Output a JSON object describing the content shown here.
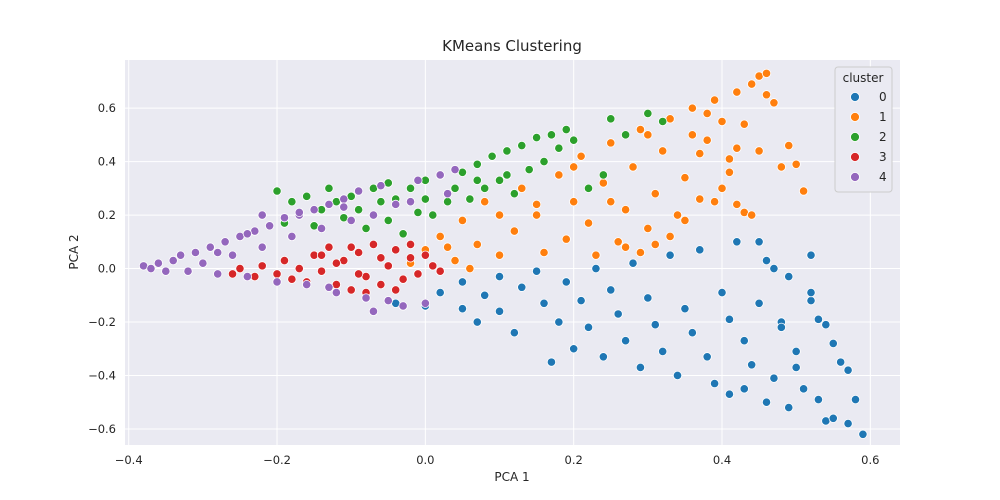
{
  "chart_data": {
    "type": "scatter",
    "title": "KMeans Clustering",
    "xlabel": "PCA 1",
    "ylabel": "PCA 2",
    "xlim": [
      -0.405,
      0.64
    ],
    "ylim": [
      -0.66,
      0.78
    ],
    "xticks": [
      -0.4,
      -0.2,
      0.0,
      0.2,
      0.4,
      0.6
    ],
    "xtick_labels": [
      "−0.4",
      "−0.2",
      "0.0",
      "0.2",
      "0.4",
      "0.6"
    ],
    "yticks": [
      -0.6,
      -0.4,
      -0.2,
      0.0,
      0.2,
      0.4,
      0.6
    ],
    "ytick_labels": [
      "−0.6",
      "−0.4",
      "−0.2",
      "0.0",
      "0.2",
      "0.4",
      "0.6"
    ],
    "grid": true,
    "legend": {
      "title": "cluster",
      "placement": "top-right"
    },
    "series": [
      {
        "name": "0",
        "color": "#1f77b4",
        "points": [
          [
            -0.04,
            -0.13
          ],
          [
            0.0,
            -0.14
          ],
          [
            0.02,
            -0.09
          ],
          [
            0.05,
            -0.15
          ],
          [
            0.05,
            -0.05
          ],
          [
            0.07,
            -0.2
          ],
          [
            0.08,
            -0.1
          ],
          [
            0.1,
            -0.03
          ],
          [
            0.1,
            -0.16
          ],
          [
            0.12,
            -0.24
          ],
          [
            0.13,
            -0.07
          ],
          [
            0.15,
            -0.01
          ],
          [
            0.16,
            -0.13
          ],
          [
            0.17,
            -0.35
          ],
          [
            0.18,
            -0.2
          ],
          [
            0.19,
            -0.05
          ],
          [
            0.2,
            -0.3
          ],
          [
            0.21,
            -0.12
          ],
          [
            0.22,
            -0.22
          ],
          [
            0.23,
            0.0
          ],
          [
            0.24,
            -0.33
          ],
          [
            0.25,
            -0.08
          ],
          [
            0.26,
            -0.17
          ],
          [
            0.27,
            -0.27
          ],
          [
            0.28,
            0.02
          ],
          [
            0.29,
            -0.37
          ],
          [
            0.3,
            -0.11
          ],
          [
            0.31,
            -0.21
          ],
          [
            0.32,
            -0.31
          ],
          [
            0.33,
            0.05
          ],
          [
            0.34,
            -0.4
          ],
          [
            0.35,
            -0.15
          ],
          [
            0.36,
            -0.24
          ],
          [
            0.37,
            0.07
          ],
          [
            0.38,
            -0.33
          ],
          [
            0.39,
            -0.43
          ],
          [
            0.4,
            -0.09
          ],
          [
            0.41,
            -0.19
          ],
          [
            0.42,
            0.1
          ],
          [
            0.43,
            -0.27
          ],
          [
            0.44,
            -0.36
          ],
          [
            0.45,
            -0.13
          ],
          [
            0.46,
            0.03
          ],
          [
            0.47,
            -0.41
          ],
          [
            0.48,
            -0.2
          ],
          [
            0.49,
            -0.03
          ],
          [
            0.5,
            -0.31
          ],
          [
            0.51,
            -0.45
          ],
          [
            0.52,
            -0.12
          ],
          [
            0.53,
            -0.49
          ],
          [
            0.54,
            -0.57
          ],
          [
            0.55,
            -0.28
          ],
          [
            0.56,
            -0.35
          ],
          [
            0.57,
            -0.38
          ],
          [
            0.58,
            -0.49
          ],
          [
            0.59,
            -0.62
          ],
          [
            0.57,
            -0.58
          ],
          [
            0.52,
            0.05
          ],
          [
            0.55,
            -0.56
          ],
          [
            0.45,
            0.1
          ],
          [
            0.48,
            -0.22
          ],
          [
            0.49,
            -0.52
          ],
          [
            0.46,
            -0.5
          ],
          [
            0.43,
            -0.45
          ],
          [
            0.5,
            -0.37
          ],
          [
            0.54,
            -0.21
          ],
          [
            0.53,
            -0.19
          ],
          [
            0.52,
            -0.09
          ],
          [
            0.47,
            0.0
          ],
          [
            0.41,
            -0.47
          ]
        ]
      },
      {
        "name": "1",
        "color": "#ff7f0e",
        "points": [
          [
            -0.02,
            0.02
          ],
          [
            0.0,
            0.07
          ],
          [
            0.02,
            0.12
          ],
          [
            0.04,
            0.03
          ],
          [
            0.05,
            0.18
          ],
          [
            0.07,
            0.09
          ],
          [
            0.08,
            0.25
          ],
          [
            0.1,
            0.05
          ],
          [
            0.12,
            0.14
          ],
          [
            0.13,
            0.3
          ],
          [
            0.15,
            0.2
          ],
          [
            0.16,
            0.06
          ],
          [
            0.18,
            0.35
          ],
          [
            0.19,
            0.11
          ],
          [
            0.2,
            0.25
          ],
          [
            0.21,
            0.42
          ],
          [
            0.22,
            0.17
          ],
          [
            0.23,
            0.05
          ],
          [
            0.24,
            0.32
          ],
          [
            0.25,
            0.47
          ],
          [
            0.26,
            0.1
          ],
          [
            0.27,
            0.22
          ],
          [
            0.28,
            0.38
          ],
          [
            0.29,
            0.52
          ],
          [
            0.3,
            0.15
          ],
          [
            0.31,
            0.28
          ],
          [
            0.32,
            0.44
          ],
          [
            0.33,
            0.56
          ],
          [
            0.34,
            0.2
          ],
          [
            0.35,
            0.34
          ],
          [
            0.36,
            0.6
          ],
          [
            0.37,
            0.26
          ],
          [
            0.38,
            0.48
          ],
          [
            0.39,
            0.63
          ],
          [
            0.4,
            0.3
          ],
          [
            0.41,
            0.41
          ],
          [
            0.42,
            0.66
          ],
          [
            0.43,
            0.54
          ],
          [
            0.44,
            0.69
          ],
          [
            0.45,
            0.72
          ],
          [
            0.46,
            0.73
          ],
          [
            0.46,
            0.65
          ],
          [
            0.47,
            0.62
          ],
          [
            0.49,
            0.46
          ],
          [
            0.5,
            0.39
          ],
          [
            0.51,
            0.29
          ],
          [
            0.48,
            0.38
          ],
          [
            0.45,
            0.44
          ],
          [
            0.42,
            0.24
          ],
          [
            0.43,
            0.21
          ],
          [
            0.44,
            0.2
          ],
          [
            0.41,
            0.36
          ],
          [
            0.39,
            0.25
          ],
          [
            0.37,
            0.43
          ],
          [
            0.35,
            0.18
          ],
          [
            0.33,
            0.12
          ],
          [
            0.31,
            0.09
          ],
          [
            0.29,
            0.06
          ],
          [
            0.27,
            0.08
          ],
          [
            0.3,
            0.5
          ],
          [
            0.4,
            0.55
          ],
          [
            0.38,
            0.58
          ],
          [
            0.36,
            0.5
          ],
          [
            0.42,
            0.45
          ],
          [
            0.25,
            0.25
          ],
          [
            0.15,
            0.24
          ],
          [
            0.1,
            0.2
          ],
          [
            0.06,
            0.0
          ],
          [
            0.03,
            0.08
          ],
          [
            0.2,
            0.38
          ]
        ]
      },
      {
        "name": "2",
        "color": "#2ca02c",
        "points": [
          [
            -0.2,
            0.29
          ],
          [
            -0.18,
            0.25
          ],
          [
            -0.16,
            0.27
          ],
          [
            -0.14,
            0.22
          ],
          [
            -0.13,
            0.3
          ],
          [
            -0.12,
            0.25
          ],
          [
            -0.11,
            0.19
          ],
          [
            -0.1,
            0.27
          ],
          [
            -0.09,
            0.22
          ],
          [
            -0.08,
            0.15
          ],
          [
            -0.07,
            0.3
          ],
          [
            -0.06,
            0.25
          ],
          [
            -0.05,
            0.18
          ],
          [
            -0.04,
            0.26
          ],
          [
            -0.03,
            0.13
          ],
          [
            -0.02,
            0.3
          ],
          [
            -0.01,
            0.21
          ],
          [
            0.0,
            0.33
          ],
          [
            0.01,
            0.2
          ],
          [
            0.02,
            0.35
          ],
          [
            0.03,
            0.25
          ],
          [
            0.04,
            0.3
          ],
          [
            0.05,
            0.36
          ],
          [
            0.06,
            0.26
          ],
          [
            0.07,
            0.39
          ],
          [
            0.08,
            0.3
          ],
          [
            0.09,
            0.42
          ],
          [
            0.1,
            0.33
          ],
          [
            0.11,
            0.44
          ],
          [
            0.12,
            0.28
          ],
          [
            0.13,
            0.46
          ],
          [
            0.14,
            0.37
          ],
          [
            0.15,
            0.49
          ],
          [
            0.16,
            0.4
          ],
          [
            0.17,
            0.5
          ],
          [
            0.18,
            0.45
          ],
          [
            0.19,
            0.52
          ],
          [
            0.2,
            0.48
          ],
          [
            0.22,
            0.3
          ],
          [
            0.24,
            0.35
          ],
          [
            0.27,
            0.5
          ],
          [
            0.3,
            0.58
          ],
          [
            0.32,
            0.55
          ],
          [
            0.25,
            0.56
          ],
          [
            0.11,
            0.35
          ],
          [
            -0.15,
            0.16
          ],
          [
            -0.05,
            0.32
          ],
          [
            0.0,
            0.26
          ],
          [
            0.07,
            0.33
          ],
          [
            -0.19,
            0.17
          ]
        ]
      },
      {
        "name": "3",
        "color": "#d62728",
        "points": [
          [
            -0.26,
            -0.02
          ],
          [
            -0.25,
            0.0
          ],
          [
            -0.23,
            -0.03
          ],
          [
            -0.22,
            0.01
          ],
          [
            -0.2,
            -0.02
          ],
          [
            -0.19,
            0.03
          ],
          [
            -0.18,
            -0.04
          ],
          [
            -0.17,
            0.0
          ],
          [
            -0.16,
            -0.05
          ],
          [
            -0.15,
            0.05
          ],
          [
            -0.14,
            -0.01
          ],
          [
            -0.13,
            0.08
          ],
          [
            -0.12,
            -0.06
          ],
          [
            -0.11,
            0.03
          ],
          [
            -0.1,
            -0.08
          ],
          [
            -0.09,
            0.06
          ],
          [
            -0.08,
            -0.03
          ],
          [
            -0.07,
            0.09
          ],
          [
            -0.06,
            -0.06
          ],
          [
            -0.05,
            0.01
          ],
          [
            -0.04,
            0.07
          ],
          [
            -0.03,
            -0.04
          ],
          [
            -0.02,
            0.04
          ],
          [
            -0.01,
            -0.02
          ],
          [
            0.0,
            0.05
          ],
          [
            0.01,
            0.01
          ],
          [
            0.02,
            -0.01
          ],
          [
            -0.12,
            0.02
          ],
          [
            -0.09,
            -0.02
          ],
          [
            -0.06,
            0.04
          ],
          [
            -0.1,
            0.08
          ],
          [
            -0.14,
            0.05
          ],
          [
            -0.02,
            0.09
          ],
          [
            -0.04,
            -0.08
          ],
          [
            -0.08,
            -0.09
          ]
        ]
      },
      {
        "name": "4",
        "color": "#9467bd",
        "points": [
          [
            -0.38,
            0.01
          ],
          [
            -0.37,
            0.0
          ],
          [
            -0.36,
            0.02
          ],
          [
            -0.35,
            -0.01
          ],
          [
            -0.34,
            0.03
          ],
          [
            -0.33,
            0.05
          ],
          [
            -0.32,
            -0.01
          ],
          [
            -0.31,
            0.06
          ],
          [
            -0.3,
            0.02
          ],
          [
            -0.29,
            0.08
          ],
          [
            -0.28,
            -0.02
          ],
          [
            -0.27,
            0.1
          ],
          [
            -0.26,
            0.05
          ],
          [
            -0.25,
            0.12
          ],
          [
            -0.24,
            -0.03
          ],
          [
            -0.23,
            0.14
          ],
          [
            -0.22,
            0.08
          ],
          [
            -0.21,
            0.16
          ],
          [
            -0.2,
            -0.05
          ],
          [
            -0.19,
            0.19
          ],
          [
            -0.18,
            0.12
          ],
          [
            -0.17,
            0.2
          ],
          [
            -0.16,
            -0.06
          ],
          [
            -0.15,
            0.22
          ],
          [
            -0.14,
            0.15
          ],
          [
            -0.13,
            0.24
          ],
          [
            -0.12,
            -0.09
          ],
          [
            -0.11,
            0.26
          ],
          [
            -0.1,
            0.18
          ],
          [
            -0.09,
            0.29
          ],
          [
            -0.08,
            -0.11
          ],
          [
            -0.07,
            0.2
          ],
          [
            -0.06,
            0.31
          ],
          [
            -0.05,
            -0.12
          ],
          [
            -0.04,
            0.24
          ],
          [
            -0.03,
            -0.14
          ],
          [
            -0.02,
            0.25
          ],
          [
            -0.01,
            0.33
          ],
          [
            0.0,
            -0.13
          ],
          [
            0.02,
            0.35
          ],
          [
            0.03,
            0.28
          ],
          [
            0.04,
            0.37
          ],
          [
            -0.13,
            -0.07
          ],
          [
            -0.07,
            -0.16
          ],
          [
            -0.22,
            0.2
          ],
          [
            -0.17,
            0.21
          ],
          [
            -0.11,
            0.23
          ],
          [
            -0.28,
            0.06
          ],
          [
            -0.24,
            0.13
          ]
        ]
      }
    ]
  }
}
